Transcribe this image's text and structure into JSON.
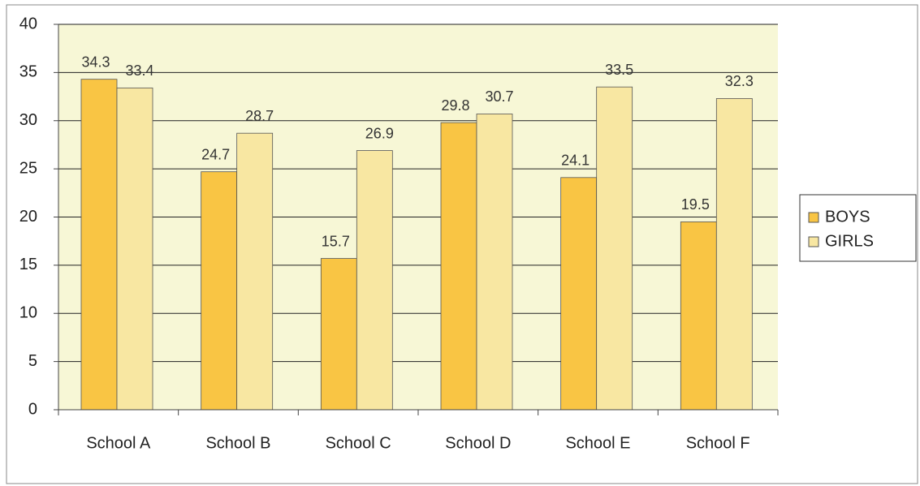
{
  "chart_data": {
    "type": "bar",
    "categories": [
      "School A",
      "School B",
      "School C",
      "School D",
      "School E",
      "School F"
    ],
    "series": [
      {
        "name": "BOYS",
        "color": "#f9c544",
        "values": [
          34.3,
          24.7,
          15.7,
          29.8,
          24.1,
          19.5
        ]
      },
      {
        "name": "GIRLS",
        "color": "#f8e7a2",
        "values": [
          33.4,
          28.7,
          26.9,
          30.7,
          33.5,
          32.3
        ]
      }
    ],
    "ylim": [
      0,
      40
    ],
    "yticks": [
      0,
      5,
      10,
      15,
      20,
      25,
      30,
      35,
      40
    ],
    "grid": true,
    "legend": "right"
  }
}
